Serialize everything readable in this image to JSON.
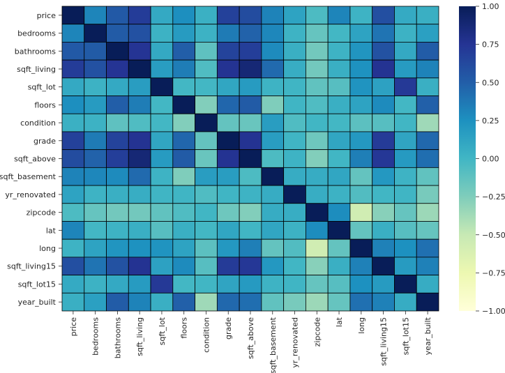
{
  "chart_data": {
    "type": "heatmap",
    "title": "",
    "xlabel": "",
    "ylabel": "",
    "variables": [
      "price",
      "bedrooms",
      "bathrooms",
      "sqft_living",
      "sqft_lot",
      "floors",
      "condition",
      "grade",
      "sqft_above",
      "sqft_basement",
      "yr_renovated",
      "zipcode",
      "lat",
      "long",
      "sqft_living15",
      "sqft_lot15",
      "year_built"
    ],
    "matrix": [
      [
        1.0,
        0.31,
        0.53,
        0.7,
        0.09,
        0.26,
        0.04,
        0.67,
        0.61,
        0.32,
        0.13,
        -0.05,
        0.31,
        0.02,
        0.59,
        0.08,
        0.05
      ],
      [
        0.31,
        1.0,
        0.52,
        0.58,
        0.03,
        0.18,
        0.03,
        0.36,
        0.48,
        0.3,
        0.02,
        -0.15,
        -0.01,
        0.13,
        0.39,
        0.03,
        0.15
      ],
      [
        0.53,
        0.52,
        1.0,
        0.75,
        0.09,
        0.5,
        -0.12,
        0.66,
        0.69,
        0.28,
        0.05,
        -0.2,
        0.02,
        0.22,
        0.57,
        0.09,
        0.51
      ],
      [
        0.7,
        0.58,
        0.75,
        1.0,
        0.17,
        0.35,
        -0.06,
        0.76,
        0.88,
        0.44,
        0.06,
        -0.2,
        0.05,
        0.24,
        0.76,
        0.18,
        0.32
      ],
      [
        0.09,
        0.03,
        0.09,
        0.17,
        1.0,
        -0.01,
        -0.01,
        0.11,
        0.18,
        0.02,
        0.01,
        -0.13,
        -0.09,
        0.23,
        0.14,
        0.72,
        0.05
      ],
      [
        0.26,
        0.18,
        0.5,
        0.35,
        -0.01,
        1.0,
        -0.26,
        0.46,
        0.52,
        -0.25,
        0.01,
        -0.06,
        0.05,
        0.13,
        0.28,
        -0.01,
        0.49
      ],
      [
        0.04,
        0.03,
        -0.12,
        -0.06,
        -0.01,
        -0.26,
        1.0,
        -0.14,
        -0.16,
        0.17,
        -0.06,
        0.0,
        -0.01,
        -0.11,
        -0.09,
        -0.0,
        -0.36
      ],
      [
        0.67,
        0.36,
        0.66,
        0.76,
        0.11,
        0.46,
        -0.14,
        1.0,
        0.76,
        0.17,
        0.01,
        -0.18,
        0.11,
        0.2,
        0.71,
        0.12,
        0.45
      ],
      [
        0.61,
        0.48,
        0.69,
        0.88,
        0.18,
        0.52,
        -0.16,
        0.76,
        1.0,
        -0.05,
        0.02,
        -0.26,
        -0.0,
        0.34,
        0.73,
        0.19,
        0.42
      ],
      [
        0.32,
        0.3,
        0.28,
        0.44,
        0.02,
        -0.25,
        0.17,
        0.17,
        -0.05,
        1.0,
        0.07,
        0.07,
        0.11,
        -0.14,
        0.2,
        0.02,
        -0.13
      ],
      [
        0.13,
        0.02,
        0.05,
        0.06,
        0.01,
        0.01,
        -0.06,
        0.01,
        0.02,
        0.07,
        1.0,
        0.06,
        0.03,
        -0.07,
        -0.0,
        0.01,
        -0.22
      ],
      [
        -0.05,
        -0.15,
        -0.2,
        -0.2,
        -0.13,
        -0.06,
        0.0,
        -0.18,
        -0.26,
        0.07,
        0.06,
        1.0,
        0.27,
        -0.56,
        -0.28,
        -0.15,
        -0.35
      ],
      [
        0.31,
        -0.01,
        0.02,
        0.05,
        -0.09,
        0.05,
        -0.01,
        0.11,
        -0.0,
        0.11,
        0.03,
        0.27,
        1.0,
        -0.14,
        0.05,
        -0.09,
        -0.15
      ],
      [
        0.02,
        0.13,
        0.22,
        0.24,
        0.23,
        0.13,
        -0.11,
        0.2,
        0.34,
        -0.14,
        -0.07,
        -0.56,
        -0.14,
        1.0,
        0.33,
        0.25,
        0.41
      ],
      [
        0.59,
        0.39,
        0.57,
        0.76,
        0.14,
        0.28,
        -0.09,
        0.71,
        0.73,
        0.2,
        -0.0,
        -0.28,
        0.05,
        0.33,
        1.0,
        0.18,
        0.33
      ],
      [
        0.08,
        0.03,
        0.09,
        0.18,
        0.72,
        -0.01,
        -0.0,
        0.12,
        0.19,
        0.02,
        0.01,
        -0.15,
        -0.09,
        0.25,
        0.18,
        1.0,
        0.07
      ],
      [
        0.05,
        0.15,
        0.51,
        0.32,
        0.05,
        0.49,
        -0.36,
        0.45,
        0.42,
        -0.13,
        -0.22,
        -0.35,
        -0.15,
        0.41,
        0.33,
        0.07,
        1.0
      ]
    ],
    "vmin": -1.0,
    "vmax": 1.0,
    "colormap": "YlGnBu",
    "colormap_stops": [
      "#ffffd9",
      "#edf8b1",
      "#c7e9b4",
      "#7fcdbb",
      "#41b6c4",
      "#1d91c0",
      "#225ea8",
      "#253494",
      "#081d58"
    ],
    "colorbar_ticks": [
      1.0,
      0.75,
      0.5,
      0.25,
      0.0,
      -0.25,
      -0.5,
      -0.75,
      -1.0
    ],
    "colorbar_tick_labels": [
      "1.00",
      "0.75",
      "0.50",
      "0.25",
      "0.00",
      "−0.25",
      "−0.50",
      "−0.75",
      "−1.00"
    ],
    "cell_border_color": "#000000",
    "tick_color": "#262626"
  }
}
